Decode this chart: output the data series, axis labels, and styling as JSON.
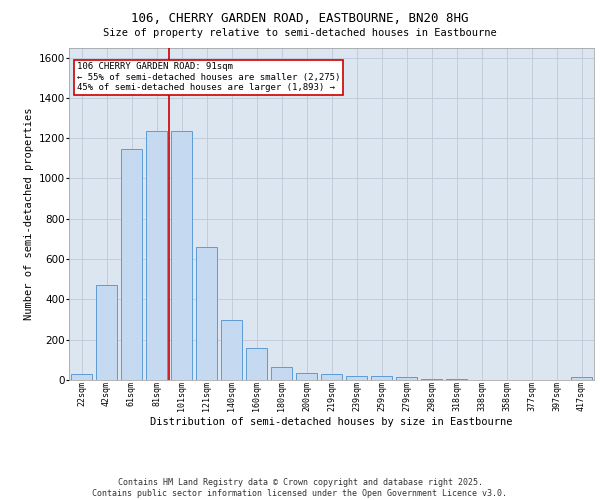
{
  "title_line1": "106, CHERRY GARDEN ROAD, EASTBOURNE, BN20 8HG",
  "title_line2": "Size of property relative to semi-detached houses in Eastbourne",
  "xlabel": "Distribution of semi-detached houses by size in Eastbourne",
  "ylabel": "Number of semi-detached properties",
  "categories": [
    "22sqm",
    "42sqm",
    "61sqm",
    "81sqm",
    "101sqm",
    "121sqm",
    "140sqm",
    "160sqm",
    "180sqm",
    "200sqm",
    "219sqm",
    "239sqm",
    "259sqm",
    "279sqm",
    "298sqm",
    "318sqm",
    "338sqm",
    "358sqm",
    "377sqm",
    "397sqm",
    "417sqm"
  ],
  "values": [
    30,
    470,
    1148,
    1238,
    1238,
    660,
    300,
    158,
    65,
    35,
    30,
    22,
    18,
    13,
    5,
    3,
    2,
    1,
    1,
    1,
    15
  ],
  "bar_color": "#c5d9f0",
  "bar_edge_color": "#5b9bd5",
  "grid_color": "#c0c8d8",
  "background_color": "#dce6f1",
  "annotation_text": "106 CHERRY GARDEN ROAD: 91sqm\n← 55% of semi-detached houses are smaller (2,275)\n45% of semi-detached houses are larger (1,893) →",
  "annotation_box_color": "#ffffff",
  "annotation_box_edge": "#cc0000",
  "redline_x": 3.5,
  "ylim": [
    0,
    1650
  ],
  "yticks": [
    0,
    200,
    400,
    600,
    800,
    1000,
    1200,
    1400,
    1600
  ],
  "footer": "Contains HM Land Registry data © Crown copyright and database right 2025.\nContains public sector information licensed under the Open Government Licence v3.0."
}
